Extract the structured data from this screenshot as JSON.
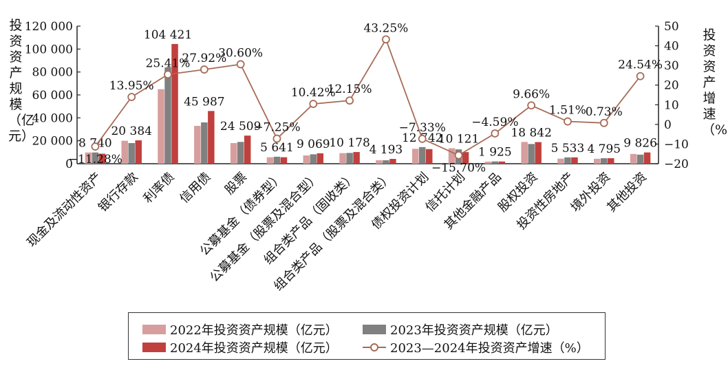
{
  "chart_data": {
    "type": "bar+line",
    "y_left_title": "投资资产规模（亿元）",
    "y_right_title": "投资资产增速（%）",
    "y_left_ticks": [
      "0",
      "20 000",
      "40 000",
      "60 000",
      "80 000",
      "100 000",
      "120 000"
    ],
    "y_right_ticks": [
      "−20",
      "−10",
      "0",
      "10",
      "20",
      "30",
      "40",
      "50"
    ],
    "ylim_left": [
      0,
      120000
    ],
    "ylim_right": [
      -20,
      50
    ],
    "categories": [
      "现金及流动性资产",
      "银行存款",
      "利率债",
      "信用债",
      "股票",
      "公募基金（债券型）",
      "公募基金（股票及混合型）",
      "组合类产品（固收类）",
      "组合类产品（股票及混合类）",
      "债权投资计划",
      "信托计划",
      "其他金融产品",
      "股权投资",
      "投资性房地产",
      "境外投资",
      "其他投资"
    ],
    "series": [
      {
        "name": "2022年投资资产规模（亿元）",
        "kind": "bar",
        "color": "#d79e9e",
        "values": [
          9800,
          20000,
          65000,
          33000,
          18000,
          5600,
          7200,
          9200,
          3000,
          13000,
          13500,
          1800,
          19000,
          4400,
          4300,
          8500
        ]
      },
      {
        "name": "2023年投资资产规模（亿元）",
        "kind": "bar",
        "color": "#808080",
        "values": [
          9800,
          18000,
          84000,
          36000,
          19000,
          6100,
          8200,
          9400,
          3000,
          14500,
          12500,
          2000,
          17200,
          5500,
          4800,
          7900
        ]
      },
      {
        "name": "2024年投资资产规模（亿元）",
        "kind": "bar",
        "color": "#c0403e",
        "values": [
          8740,
          20384,
          104421,
          45987,
          24509,
          5641,
          9069,
          10178,
          4193,
          12742,
          10121,
          1925,
          18842,
          5533,
          4795,
          9826
        ]
      },
      {
        "name": "2023—2024年投资资产增速（%）",
        "kind": "line",
        "color": "#a66b57",
        "values": [
          -11.28,
          13.95,
          25.41,
          27.92,
          30.6,
          -7.25,
          10.42,
          12.15,
          43.25,
          -7.33,
          -15.7,
          -4.59,
          9.66,
          1.51,
          0.73,
          24.54
        ]
      }
    ],
    "bar_labels": [
      "8 740",
      "20 384",
      "104 421",
      "45 987",
      "24 509",
      "5 641",
      "9 069",
      "10 178",
      "4 193",
      "12 742",
      "10 121",
      "1 925",
      "18 842",
      "5 533",
      "4 795",
      "9 826"
    ],
    "line_labels": [
      "−11.28%",
      "13.95%",
      "25.41%",
      "27.92%",
      "30.60%",
      "−7.25%",
      "10.42%",
      "12.15%",
      "43.25%",
      "−7.33%",
      "−15.70%",
      "−4.59%",
      "9.66%",
      "1.51%",
      "0.73%",
      "24.54%"
    ],
    "legend": {
      "s2022": "2022年投资资产规模（亿元）",
      "s2023": "2023年投资资产规模（亿元）",
      "s2024": "2024年投资资产规模（亿元）",
      "growth": "2023—2024年投资资产增速（%）"
    }
  }
}
